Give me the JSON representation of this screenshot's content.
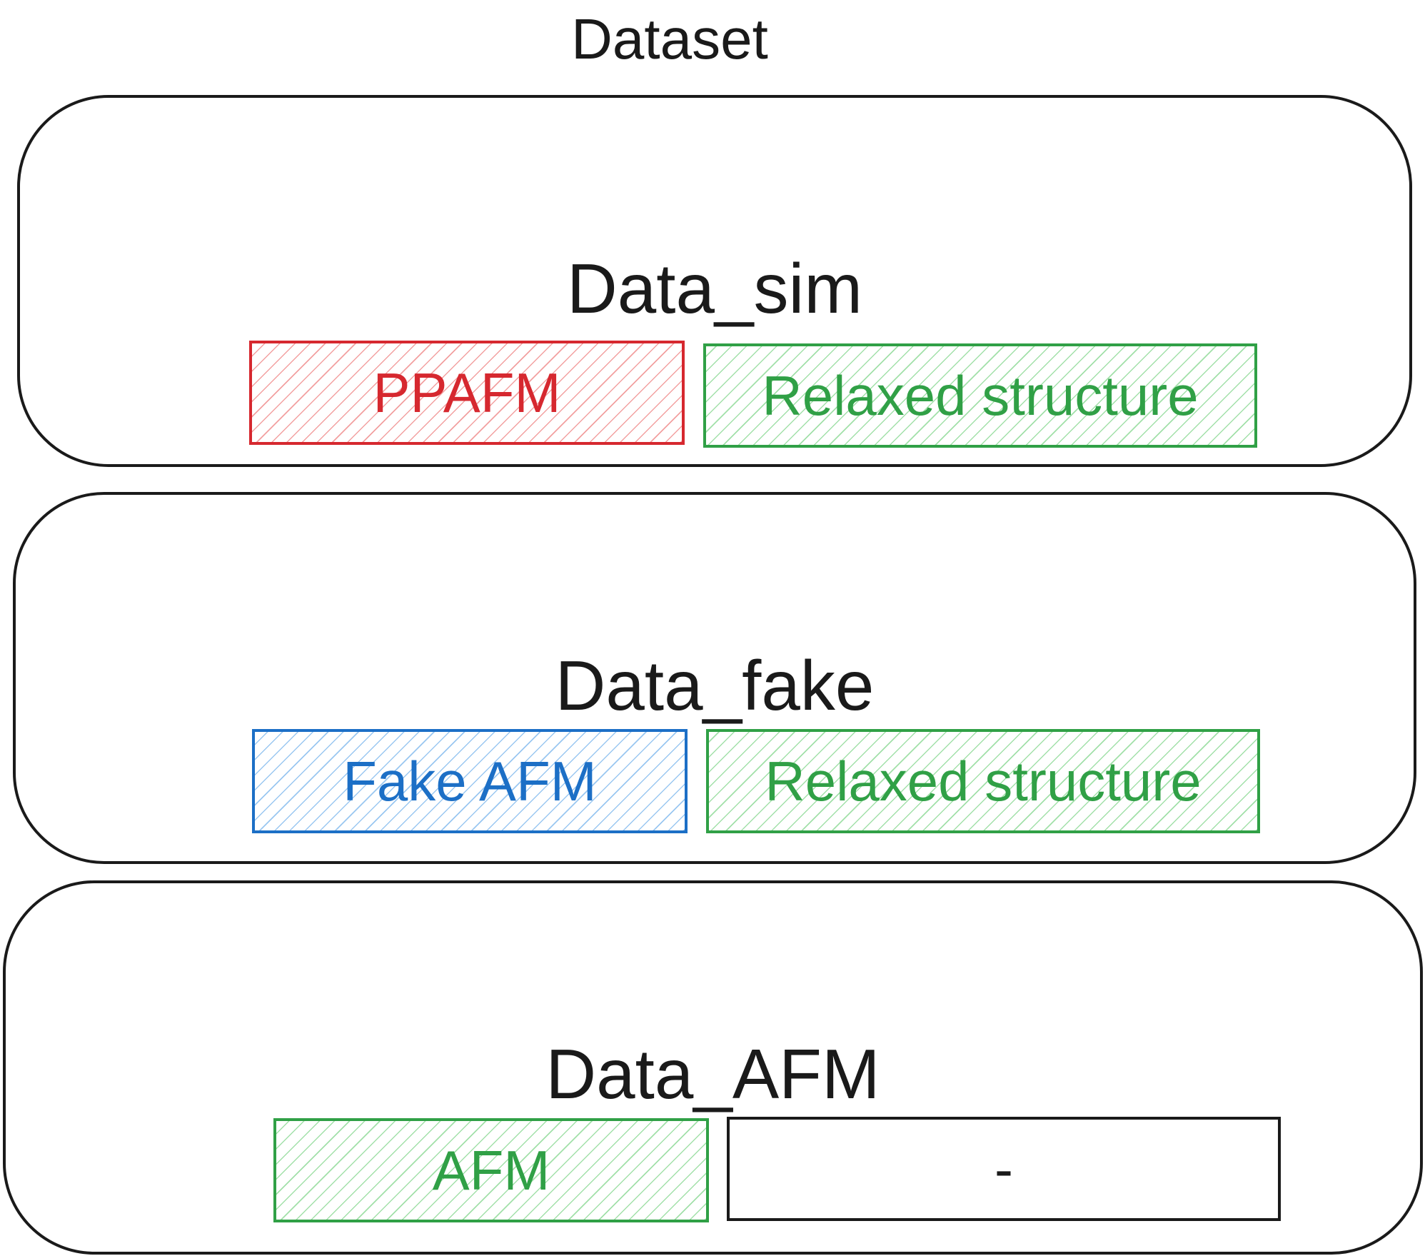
{
  "title": "Dataset",
  "groups": [
    {
      "label": "Data_sim",
      "cells": [
        {
          "text": "PPAFM",
          "color": "#d6282f"
        },
        {
          "text": "Relaxed structure",
          "color": "#30a046"
        }
      ]
    },
    {
      "label": "Data_fake",
      "cells": [
        {
          "text": "Fake AFM",
          "color": "#1c6fc6"
        },
        {
          "text": "Relaxed structure",
          "color": "#30a046"
        }
      ]
    },
    {
      "label": "Data_AFM",
      "cells": [
        {
          "text": "AFM",
          "color": "#30a046"
        },
        {
          "text": "-",
          "color": "#1a1a1a"
        }
      ]
    }
  ]
}
